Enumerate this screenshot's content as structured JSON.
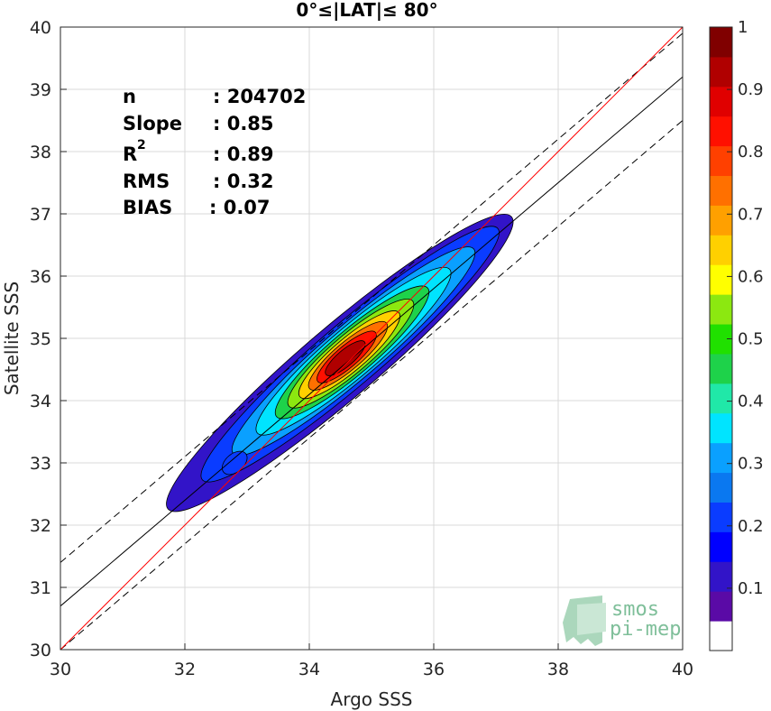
{
  "chart_data": {
    "type": "heatmap",
    "title": "0°≤|LAT|≤ 80°",
    "xlabel": "Argo SSS",
    "ylabel": "Satellite SSS",
    "xlim": [
      30,
      40
    ],
    "ylim": [
      30,
      40
    ],
    "xticks": [
      "30",
      "32",
      "34",
      "36",
      "38",
      "40"
    ],
    "yticks": [
      "30",
      "31",
      "32",
      "33",
      "34",
      "35",
      "36",
      "37",
      "38",
      "39",
      "40"
    ],
    "grid": true,
    "stats": [
      {
        "label": "n",
        "value": ": 204702"
      },
      {
        "label": "Slope",
        "value": ": 0.85"
      },
      {
        "label": "R",
        "sup": "2",
        "value": ": 0.89"
      },
      {
        "label": "RMS",
        "value": ": 0.32"
      },
      {
        "label": "BIAS",
        "value": ": 0.07"
      }
    ],
    "regression": {
      "slope": 0.85,
      "intercept": 5.2,
      "band": 0.7
    },
    "density_core": {
      "x": 34.6,
      "y": 34.7
    },
    "colorbar": {
      "range": [
        0,
        1
      ],
      "ticks": [
        "0.1",
        "0.2",
        "0.3",
        "0.4",
        "0.5",
        "0.6",
        "0.7",
        "0.8",
        "0.9",
        "1"
      ],
      "colors": [
        "#ffffff",
        "#5a0aa6",
        "#3214c8",
        "#0000ff",
        "#0a3cff",
        "#0a78f0",
        "#0aa0ff",
        "#00e4ff",
        "#20e8a8",
        "#1ed24a",
        "#20e000",
        "#8ce810",
        "#ffff00",
        "#ffd000",
        "#ffa000",
        "#ff7000",
        "#ff4000",
        "#ff1000",
        "#e00000",
        "#b00000",
        "#800000"
      ]
    },
    "colors": {
      "identity_line": "#ff0000",
      "regression_line": "#000000"
    }
  },
  "logo": {
    "line1": "smos",
    "line2": "pi-mep"
  }
}
